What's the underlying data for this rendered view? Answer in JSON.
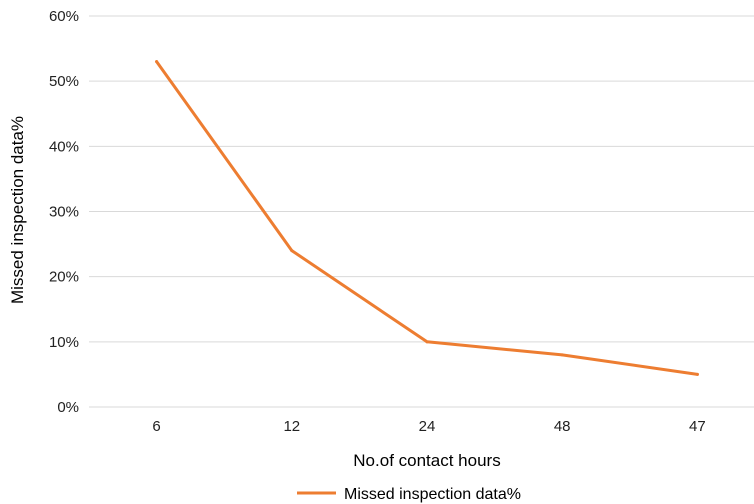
{
  "chart_data": {
    "type": "line",
    "title": "",
    "xlabel": "No.of contact hours",
    "ylabel": "Missed inspection data%",
    "categories": [
      "6",
      "12",
      "24",
      "48",
      "47"
    ],
    "series": [
      {
        "name": "Missed inspection data%",
        "values": [
          53,
          24,
          10,
          8,
          5
        ],
        "color": "#ed7d31"
      }
    ],
    "ylim": [
      0,
      60
    ],
    "yticks": [
      {
        "value": 0,
        "label": "0%"
      },
      {
        "value": 10,
        "label": "10%"
      },
      {
        "value": 20,
        "label": "20%"
      },
      {
        "value": 30,
        "label": "30%"
      },
      {
        "value": 40,
        "label": "40%"
      },
      {
        "value": 50,
        "label": "50%"
      },
      {
        "value": 60,
        "label": "60%"
      }
    ],
    "grid": true,
    "legend": "bottom"
  }
}
